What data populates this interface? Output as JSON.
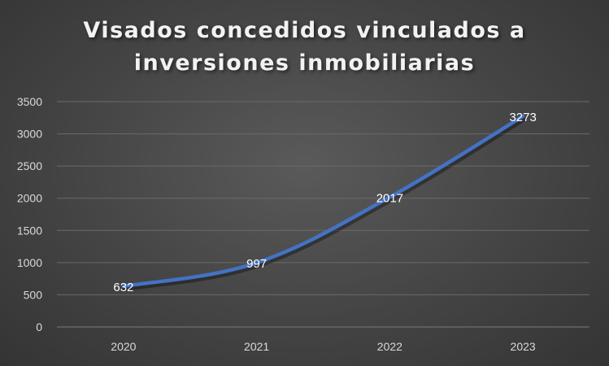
{
  "chart_data": {
    "type": "line",
    "title_lines": [
      "Visados concedidos vinculados a",
      "inversiones inmobiliarias"
    ],
    "categories": [
      "2020",
      "2021",
      "2022",
      "2023"
    ],
    "series": [
      {
        "values": [
          632,
          997,
          2017,
          3273
        ],
        "color": "#4472c4"
      }
    ],
    "data_labels": [
      "632",
      "997",
      "2017",
      "3273"
    ],
    "y_ticks": [
      0,
      500,
      1000,
      1500,
      2000,
      2500,
      3000,
      3500
    ],
    "ylim": [
      0,
      3500
    ],
    "xlabel": "",
    "ylabel": "",
    "grid": true,
    "legend": "none"
  }
}
